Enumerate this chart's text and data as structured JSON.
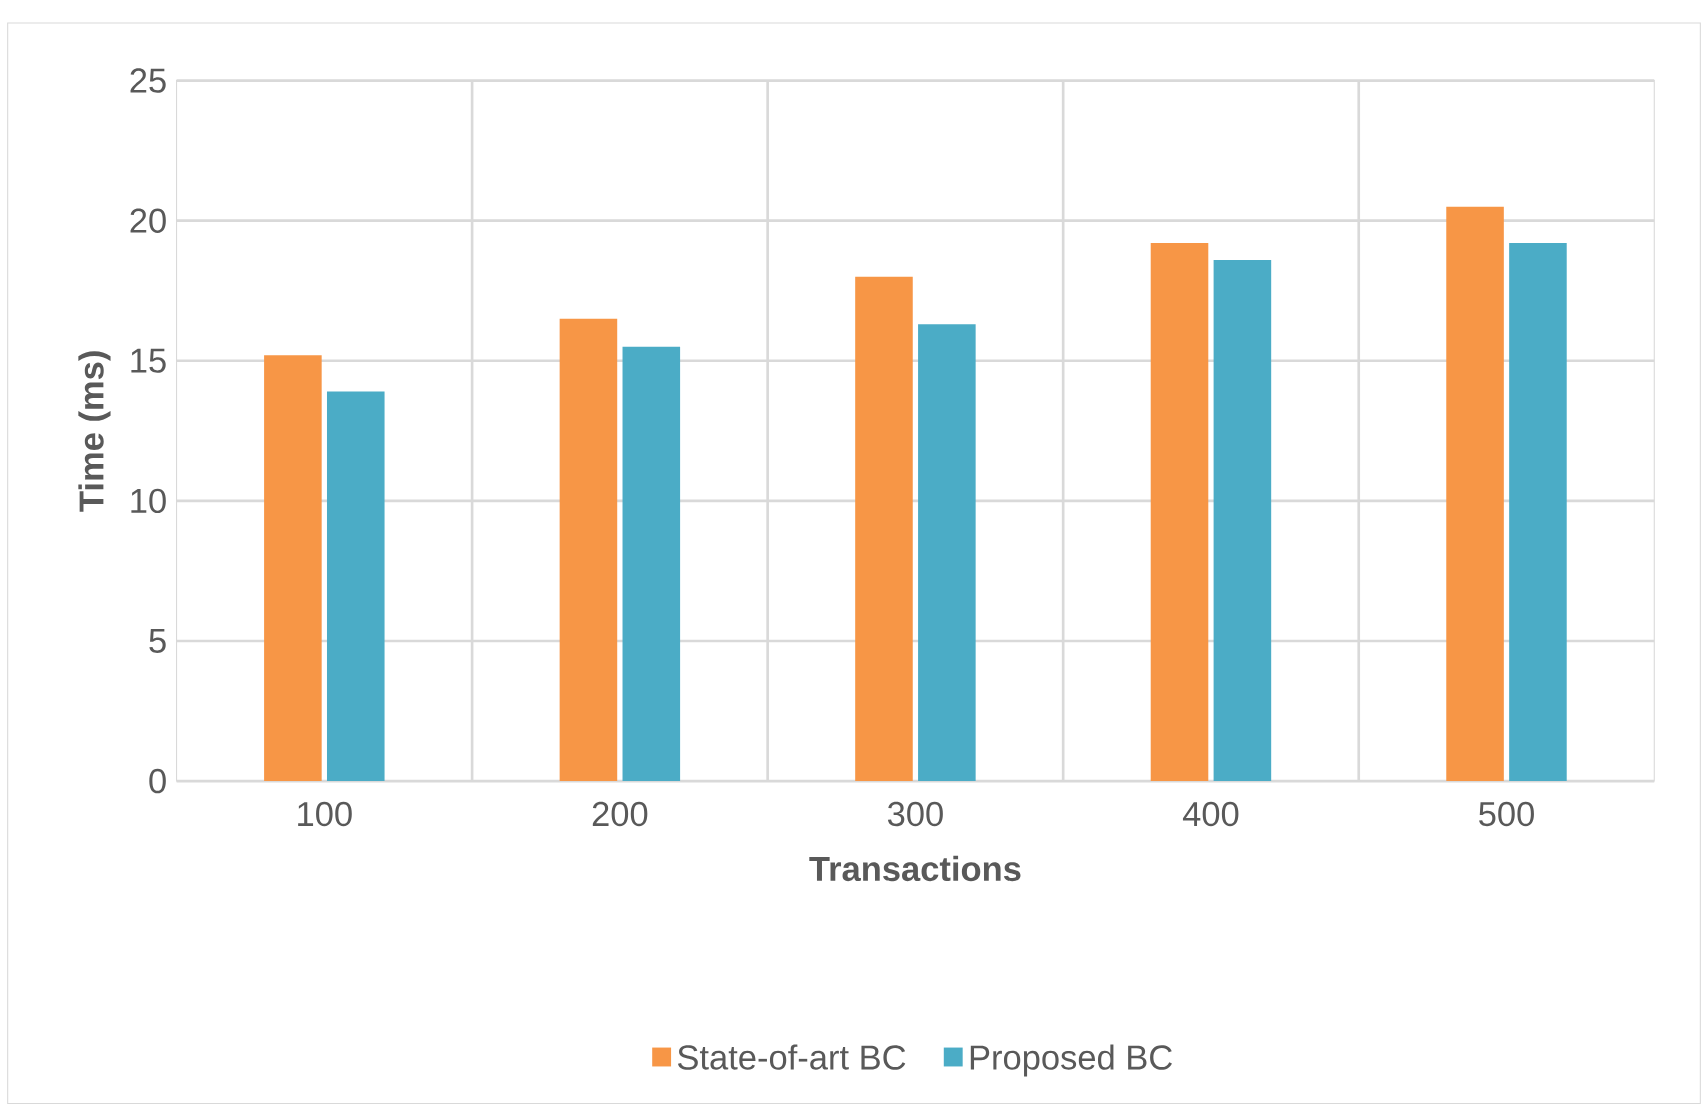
{
  "chart_data": {
    "type": "bar",
    "xlabel": "Transactions",
    "ylabel": "Time (ms)",
    "categories": [
      "100",
      "200",
      "300",
      "400",
      "500"
    ],
    "series": [
      {
        "name": "State-of-art BC",
        "color": "#f79646",
        "values": [
          15.2,
          16.5,
          18.0,
          19.2,
          20.5
        ]
      },
      {
        "name": "Proposed BC",
        "color": "#4bacc6",
        "values": [
          13.9,
          15.5,
          16.3,
          18.6,
          19.2
        ]
      }
    ],
    "ylim": [
      0,
      25
    ],
    "yticks": [
      0,
      5,
      10,
      15,
      20,
      25
    ],
    "grid": true,
    "legend": "bottom"
  }
}
